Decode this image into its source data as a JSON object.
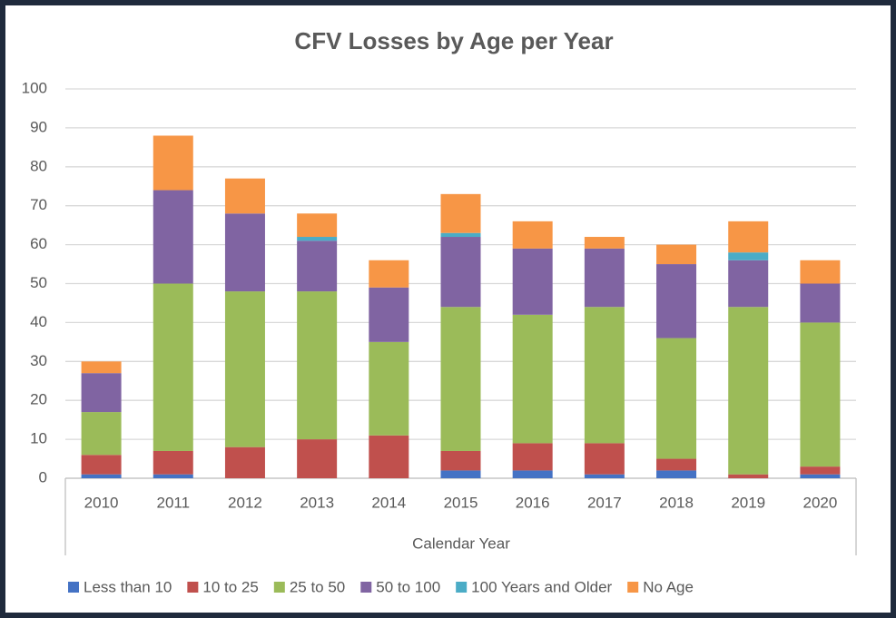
{
  "chart_data": {
    "type": "stacked_bar",
    "title": "CFV Losses by Age per Year",
    "x_label": "Calendar Year",
    "categories": [
      "2010",
      "2011",
      "2012",
      "2013",
      "2014",
      "2015",
      "2016",
      "2017",
      "2018",
      "2019",
      "2020"
    ],
    "series": [
      {
        "name": "Less than 10",
        "color": "#4472c4",
        "values": [
          1,
          1,
          0,
          0,
          0,
          2,
          2,
          1,
          2,
          0,
          1
        ]
      },
      {
        "name": "10 to 25",
        "color": "#c0504d",
        "values": [
          5,
          6,
          8,
          10,
          11,
          5,
          7,
          8,
          3,
          1,
          2
        ]
      },
      {
        "name": "25 to 50",
        "color": "#9bbb59",
        "values": [
          11,
          43,
          40,
          38,
          24,
          37,
          33,
          35,
          31,
          43,
          37
        ]
      },
      {
        "name": "50 to 100",
        "color": "#8064a2",
        "values": [
          10,
          24,
          20,
          13,
          14,
          18,
          17,
          15,
          19,
          12,
          10
        ]
      },
      {
        "name": "100 Years and Older",
        "color": "#4bacc6",
        "values": [
          0,
          0,
          0,
          1,
          0,
          1,
          0,
          0,
          0,
          2,
          0
        ]
      },
      {
        "name": "No Age",
        "color": "#f79646",
        "values": [
          3,
          14,
          9,
          6,
          7,
          10,
          7,
          3,
          5,
          8,
          6
        ]
      }
    ],
    "ylim": [
      0,
      100
    ],
    "yticks": [
      0,
      10,
      20,
      30,
      40,
      50,
      60,
      70,
      80,
      90,
      100
    ],
    "grid": true,
    "legend": "bottom"
  }
}
